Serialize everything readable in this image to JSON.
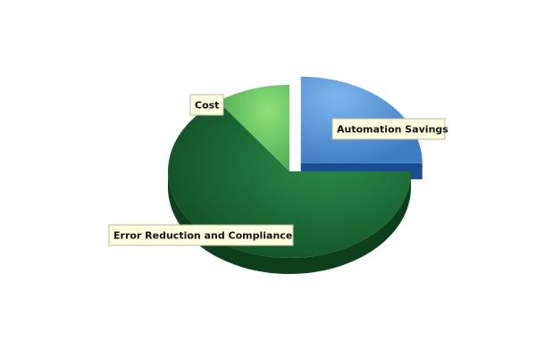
{
  "chart_data": {
    "type": "pie",
    "title": "",
    "exploded": "Automation Savings",
    "slices": [
      {
        "label": "Automation Savings",
        "value": 25,
        "color": "#4f8fd6"
      },
      {
        "label": "Error Reduction and Compliance",
        "value": 65,
        "color": "#1f6e3a"
      },
      {
        "label": "Cost",
        "value": 10,
        "color": "#5cc45a"
      }
    ]
  }
}
